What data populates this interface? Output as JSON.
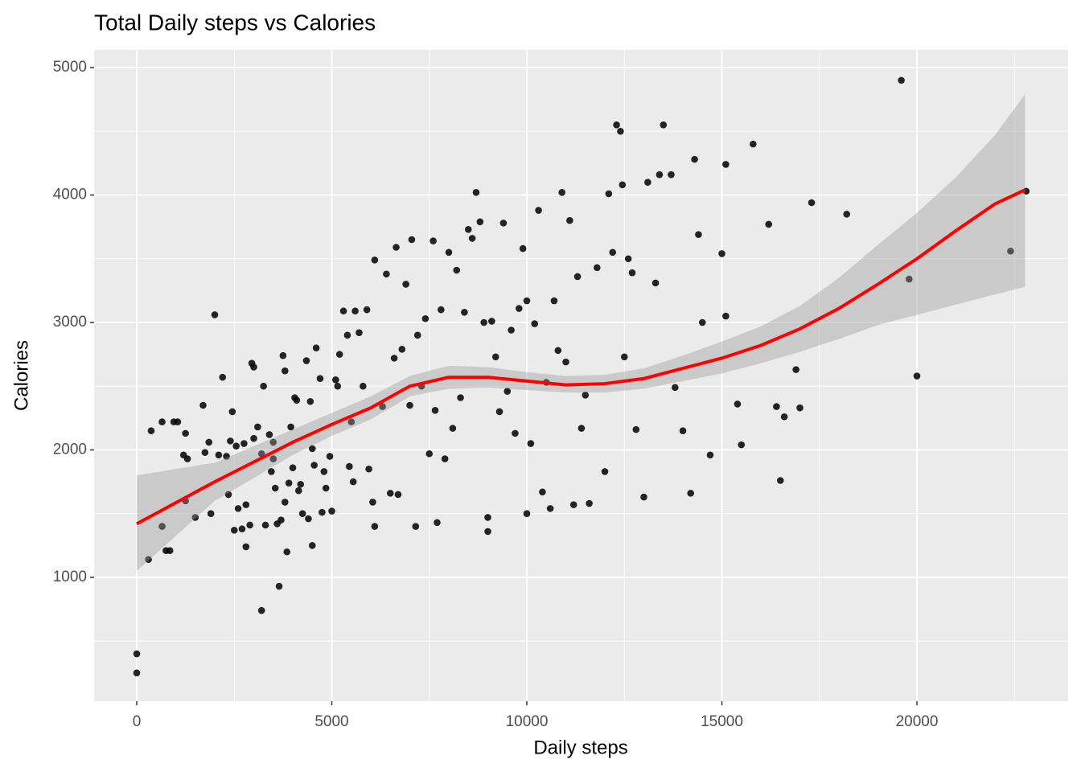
{
  "chart_data": {
    "type": "scatter",
    "title": "Total Daily steps vs Calories",
    "xlabel": "Daily steps",
    "ylabel": "Calories",
    "xlim": [
      -1093,
      23876
    ],
    "ylim": [
      28,
      5139
    ],
    "xticks": [
      0,
      5000,
      10000,
      15000,
      20000
    ],
    "yticks": [
      1000,
      2000,
      3000,
      4000,
      5000
    ],
    "grid": true,
    "points": {
      "color": "#000000",
      "x": [
        0,
        0,
        300,
        370,
        650,
        650,
        750,
        850,
        950,
        1050,
        1200,
        1300,
        1250,
        1250,
        1500,
        1700,
        1750,
        1850,
        1900,
        2000,
        2100,
        2200,
        2300,
        2350,
        2400,
        2450,
        2500,
        2550,
        2600,
        2700,
        2750,
        2800,
        2800,
        2900,
        2950,
        3000,
        3000,
        3100,
        3200,
        3200,
        3250,
        3300,
        3400,
        3450,
        3500,
        3500,
        3550,
        3600,
        3650,
        3700,
        3750,
        3800,
        3800,
        3850,
        3900,
        3950,
        4000,
        4050,
        4100,
        4150,
        4200,
        4250,
        4350,
        4400,
        4450,
        4500,
        4500,
        4550,
        4600,
        4700,
        4750,
        4800,
        4850,
        4950,
        5000,
        5100,
        5150,
        5200,
        5300,
        5400,
        5450,
        5500,
        5550,
        5600,
        5700,
        5800,
        5900,
        5950,
        6050,
        6100,
        6100,
        6300,
        6400,
        6500,
        6600,
        6650,
        6700,
        6800,
        6900,
        7000,
        7050,
        7150,
        7200,
        7300,
        7400,
        7500,
        7600,
        7650,
        7700,
        7800,
        7900,
        8000,
        8100,
        8200,
        8300,
        8400,
        8500,
        8600,
        8700,
        8800,
        8900,
        9000,
        9000,
        9100,
        9200,
        9300,
        9400,
        9500,
        9600,
        9700,
        9800,
        9900,
        10000,
        10000,
        10100,
        10200,
        10300,
        10400,
        10500,
        10600,
        10700,
        10800,
        10900,
        11000,
        11100,
        11200,
        11300,
        11400,
        11500,
        11600,
        11800,
        12000,
        12100,
        12200,
        12300,
        12400,
        12450,
        12500,
        12600,
        12700,
        12800,
        13000,
        13100,
        13300,
        13400,
        13500,
        13700,
        13800,
        14000,
        14200,
        14300,
        14400,
        14500,
        14700,
        15000,
        15100,
        15100,
        15400,
        15500,
        15800,
        16200,
        16400,
        16500,
        16600,
        16900,
        17000,
        17300,
        18200,
        19600,
        19800,
        20000,
        22400,
        22800
      ],
      "y": [
        400,
        250,
        1140,
        2150,
        2220,
        1400,
        1210,
        1210,
        2220,
        2220,
        1960,
        1930,
        1600,
        2130,
        1470,
        2350,
        1980,
        2060,
        1500,
        3060,
        1960,
        2570,
        1950,
        1650,
        2070,
        2300,
        1370,
        2030,
        1540,
        1380,
        2050,
        1570,
        1240,
        1410,
        2680,
        2650,
        2090,
        2180,
        1970,
        740,
        2500,
        1410,
        2120,
        1830,
        1930,
        2060,
        1700,
        1420,
        930,
        1450,
        2740,
        2620,
        1590,
        1200,
        1740,
        2180,
        1860,
        2410,
        2390,
        1680,
        1730,
        1500,
        2700,
        1460,
        2380,
        1250,
        2010,
        1880,
        2800,
        2560,
        1510,
        1830,
        1700,
        1950,
        1520,
        2550,
        2500,
        2750,
        3090,
        2900,
        1870,
        2220,
        1750,
        3090,
        2920,
        2500,
        3100,
        1850,
        1590,
        1400,
        3490,
        2340,
        3380,
        1660,
        2720,
        3590,
        1650,
        2790,
        3300,
        2350,
        3650,
        1400,
        2900,
        2500,
        3030,
        1970,
        3640,
        2310,
        1430,
        3100,
        1930,
        3550,
        2170,
        3410,
        2410,
        3080,
        3730,
        3660,
        4020,
        3790,
        3000,
        1360,
        1470,
        3010,
        2730,
        2300,
        3780,
        2460,
        2940,
        2130,
        3110,
        3580,
        3170,
        1500,
        2050,
        2990,
        3880,
        1670,
        2530,
        1540,
        3170,
        2780,
        4020,
        2690,
        3800,
        1570,
        3360,
        2170,
        2430,
        1580,
        3430,
        1830,
        4010,
        3550,
        4550,
        4500,
        4080,
        2730,
        3500,
        3390,
        2160,
        1630,
        4100,
        3310,
        4160,
        4550,
        4160,
        2490,
        2150,
        1660,
        4280,
        3690,
        3000,
        1960,
        3540,
        4240,
        3050,
        2360,
        2040,
        4400,
        3770,
        2340,
        1760,
        2260,
        2630,
        2330,
        3940,
        3850,
        4900,
        3340,
        2580,
        3560,
        4030
      ]
    },
    "smooth": {
      "color": "#ff0000",
      "band_color": "#999999",
      "x": [
        0,
        2000,
        4000,
        5000,
        6000,
        7000,
        8000,
        9000,
        10000,
        11000,
        12000,
        13000,
        14000,
        15000,
        16000,
        17000,
        18000,
        19000,
        20000,
        21000,
        22000,
        22770
      ],
      "y": [
        1420,
        1750,
        2060,
        2200,
        2330,
        2500,
        2570,
        2570,
        2540,
        2510,
        2520,
        2560,
        2640,
        2720,
        2820,
        2950,
        3110,
        3300,
        3500,
        3720,
        3930,
        4040
      ],
      "lower": [
        1050,
        1600,
        1960,
        2110,
        2240,
        2420,
        2480,
        2490,
        2470,
        2450,
        2450,
        2480,
        2540,
        2600,
        2680,
        2770,
        2870,
        2980,
        3060,
        3140,
        3220,
        3280
      ],
      "upper": [
        1800,
        1900,
        2160,
        2290,
        2420,
        2580,
        2660,
        2650,
        2610,
        2580,
        2590,
        2640,
        2740,
        2850,
        2970,
        3130,
        3350,
        3610,
        3860,
        4140,
        4470,
        4790
      ]
    }
  }
}
